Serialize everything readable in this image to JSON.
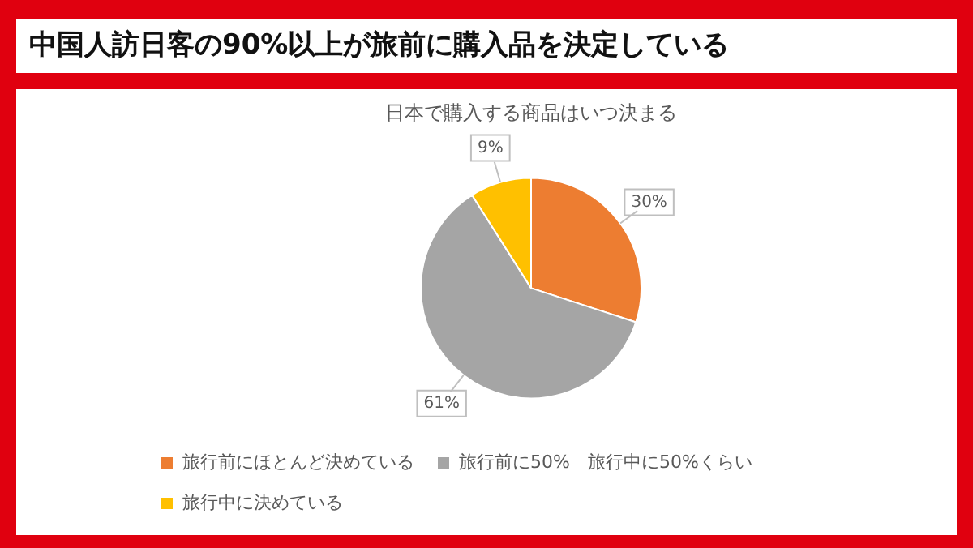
{
  "chart_data": {
    "type": "pie",
    "title": "中国人訪日客の90%以上が旅前に購入品を決定している",
    "subtitle": "日本で購入する商品はいつ決まる",
    "categories": [
      "旅行前にほとんど決めている",
      "旅行前に50%　旅行中に50%くらい",
      "旅行中に決めている"
    ],
    "values": [
      30,
      61,
      9
    ],
    "colors": [
      "#ed7d31",
      "#a5a5a5",
      "#ffc000"
    ],
    "value_labels": [
      "30%",
      "61%",
      "9%"
    ],
    "legend": "bottom"
  }
}
